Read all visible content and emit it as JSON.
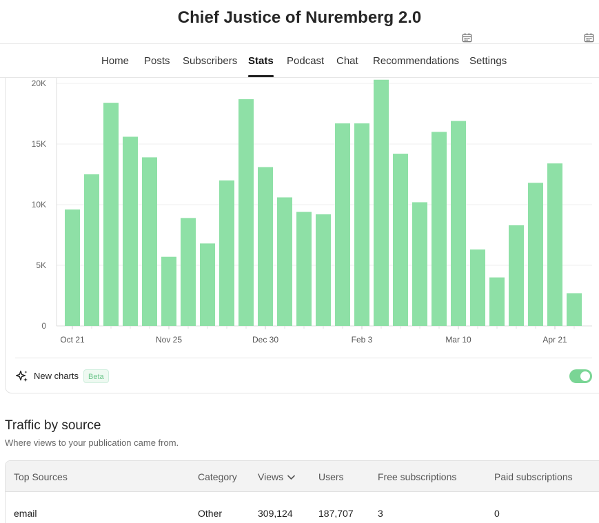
{
  "publication": {
    "title": "Chief Justice of Nuremberg 2.0"
  },
  "icons": {
    "calendar": "calendar-icon",
    "sparkle": "sparkle-icon",
    "sort": "chevron-down-icon"
  },
  "nav": {
    "tabs": [
      {
        "label": "Home"
      },
      {
        "label": "Posts"
      },
      {
        "label": "Subscribers"
      },
      {
        "label": "Stats",
        "active": true
      },
      {
        "label": "Podcast"
      },
      {
        "label": "Chat"
      },
      {
        "label": "Recommendations"
      },
      {
        "label": "Settings"
      }
    ]
  },
  "chart_data": {
    "type": "bar",
    "color": "#8ee0a6",
    "ylim": [
      0,
      20000
    ],
    "yticks": [
      {
        "value": 0,
        "label": "0"
      },
      {
        "value": 5000,
        "label": "5K"
      },
      {
        "value": 10000,
        "label": "10K"
      },
      {
        "value": 15000,
        "label": "15K"
      },
      {
        "value": 20000,
        "label": "20K"
      }
    ],
    "values": [
      9600,
      12500,
      18400,
      15600,
      13900,
      5700,
      8900,
      6800,
      12000,
      18700,
      13100,
      10600,
      9400,
      9200,
      16700,
      16700,
      20300,
      14200,
      10200,
      16000,
      16900,
      6300,
      4000,
      8300,
      11800,
      13400,
      2700
    ],
    "xticks": [
      {
        "index": 0,
        "label": "Oct 21"
      },
      {
        "index": 5,
        "label": "Nov 25"
      },
      {
        "index": 10,
        "label": "Dec 30"
      },
      {
        "index": 15,
        "label": "Feb 3"
      },
      {
        "index": 20,
        "label": "Mar 10"
      },
      {
        "index": 25,
        "label": "Apr 21"
      }
    ],
    "grid": true
  },
  "chart_footer": {
    "label": "New charts",
    "badge": "Beta",
    "toggle_on": true
  },
  "traffic": {
    "title": "Traffic by source",
    "subtitle": "Where views to your publication came from.",
    "columns": [
      "Top Sources",
      "Category",
      "Views",
      "Users",
      "Free subscriptions",
      "Paid subscriptions"
    ],
    "rows": [
      {
        "source": "email",
        "category": "Other",
        "views": "309,124",
        "users": "187,707",
        "free": "3",
        "paid": "0"
      }
    ]
  }
}
